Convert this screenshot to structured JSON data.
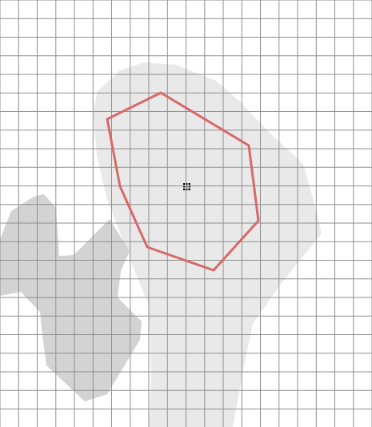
{
  "canvas": {
    "background_color": "#ffffff",
    "grid_color": "#8f8f8f",
    "light_region_color": "#e9e9e9",
    "dark_region_color": "#d3d3d3",
    "polygon_stroke_color": "#d96868",
    "center_marker_color": "#111111"
  },
  "elements": {
    "grid_name": "map-grid",
    "light_region_name": "light-gray-region",
    "dark_region_name": "dark-gray-region",
    "polygon_name": "red-polygon-outline",
    "center_marker_name": "center-marker-icon"
  }
}
